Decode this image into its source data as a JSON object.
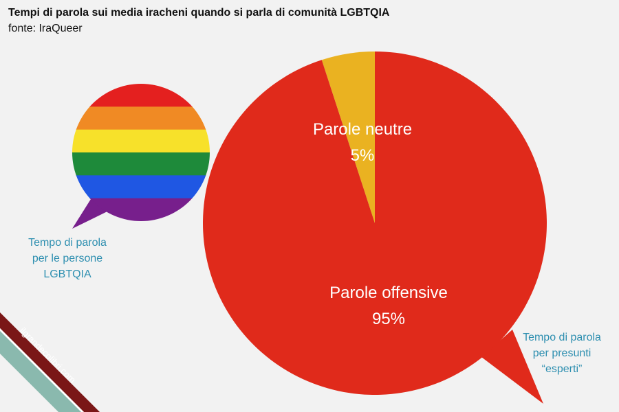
{
  "header": {
    "title": "Tempi di parola sui media iracheni quando si parla di comunità LGBTQIA",
    "source": "fonte: IraQueer"
  },
  "chart_data": {
    "type": "pie",
    "title": "Tempi di parola sui media iracheni quando si parla di comunità LGBTQIA",
    "slices": [
      {
        "label": "Parole neutre",
        "value": 5,
        "value_label": "5%",
        "color": "#eab221"
      },
      {
        "label": "Parole offensive",
        "value": 95,
        "value_label": "95%",
        "color": "#e02a1b"
      }
    ]
  },
  "rainbow_bubble": {
    "colors": [
      "#e4201f",
      "#f08a24",
      "#f7e12a",
      "#1e8a3a",
      "#1f57e3",
      "#771f8c"
    ]
  },
  "callouts": {
    "left_lines": [
      "Tempo di parola",
      "per le persone",
      "LGBTQIA"
    ],
    "right_lines": [
      "Tempo di parola",
      "per presunti",
      "“esperti”"
    ],
    "color": "#2e8fb0"
  },
  "watermark": {
    "text": "ilgrandecolibri.com",
    "colors": [
      "#7a1717",
      "#ffffff",
      "#8ab9ae"
    ]
  }
}
